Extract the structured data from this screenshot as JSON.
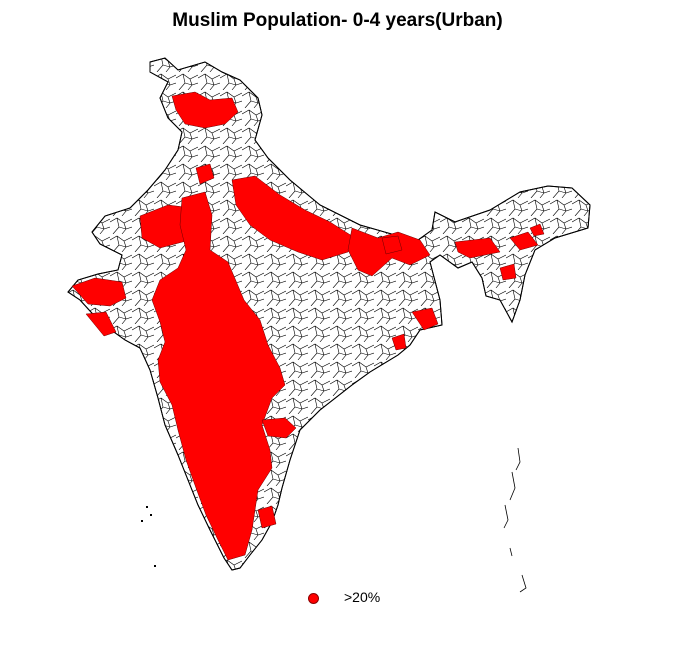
{
  "title": "Muslim Population- 0-4 years(Urban)",
  "colors": {
    "highlight": "#ff0000",
    "outline": "#000000",
    "background": "#ffffff"
  },
  "legend": {
    "items": [
      {
        "label": ">20%",
        "color": "#ff0000",
        "symbol": "circle"
      }
    ]
  }
}
